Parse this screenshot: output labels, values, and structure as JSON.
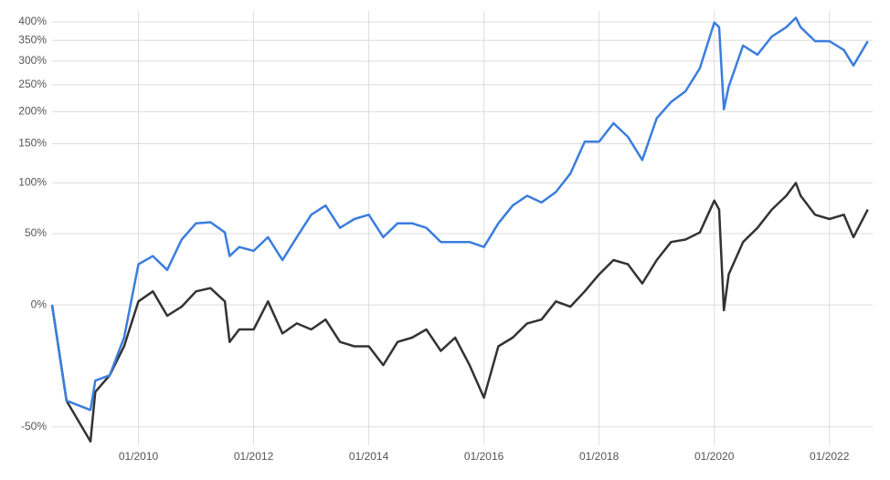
{
  "chart_data": {
    "type": "line",
    "x": [
      "07/2008",
      "10/2008",
      "03/2009",
      "04/2009",
      "07/2009",
      "10/2009",
      "01/2010",
      "04/2010",
      "07/2010",
      "10/2010",
      "01/2011",
      "04/2011",
      "07/2011",
      "08/2011",
      "10/2011",
      "01/2012",
      "04/2012",
      "07/2012",
      "10/2012",
      "01/2013",
      "04/2013",
      "07/2013",
      "10/2013",
      "01/2014",
      "04/2014",
      "07/2014",
      "10/2014",
      "01/2015",
      "04/2015",
      "07/2015",
      "10/2015",
      "01/2016",
      "04/2016",
      "07/2016",
      "10/2016",
      "01/2017",
      "04/2017",
      "07/2017",
      "10/2017",
      "01/2018",
      "04/2018",
      "07/2018",
      "10/2018",
      "01/2019",
      "04/2019",
      "07/2019",
      "10/2019",
      "01/2020",
      "02/2020",
      "03/2020",
      "04/2020",
      "07/2020",
      "10/2020",
      "01/2021",
      "04/2021",
      "06/2021",
      "07/2021",
      "10/2021",
      "01/2022",
      "04/2022",
      "06/2022",
      "09/2022"
    ],
    "series": [
      {
        "color": "#3b7ddd",
        "values": [
          0,
          -42,
          -45,
          -35,
          -33,
          -17,
          26,
          32,
          22,
          45,
          59,
          60,
          51,
          32,
          39,
          36,
          47,
          29,
          47,
          67,
          76,
          55,
          63,
          67,
          47,
          59,
          59,
          55,
          43,
          43,
          43,
          39,
          59,
          76,
          86,
          79,
          90,
          111,
          153,
          153,
          181,
          160,
          128,
          189,
          217,
          237,
          284,
          398,
          385,
          204,
          246,
          337,
          315,
          360,
          385,
          412,
          385,
          348,
          348,
          326,
          290,
          348
        ]
      },
      {
        "color": "#333333",
        "values": [
          0,
          -42,
          -54,
          -39,
          -33,
          -21,
          2,
          8,
          -6,
          -1,
          8,
          10,
          2,
          -19,
          -13,
          -13,
          2,
          -15,
          -10,
          -13,
          -8,
          -19,
          -21,
          -21,
          -29,
          -19,
          -17,
          -13,
          -23,
          -17,
          -29,
          -41,
          -21,
          -17,
          -10,
          -8,
          2,
          -1,
          8,
          19,
          29,
          26,
          13,
          29,
          43,
          45,
          51,
          81,
          72,
          -3,
          19,
          43,
          55,
          72,
          86,
          100,
          86,
          67,
          63,
          67,
          47,
          72
        ]
      }
    ],
    "xlim": [
      "07/2008",
      "10/2022"
    ],
    "xticks": [
      "01/2010",
      "01/2012",
      "01/2014",
      "01/2016",
      "01/2018",
      "01/2020",
      "01/2022"
    ],
    "ylim": [
      -55,
      432
    ],
    "yticks": [
      {
        "value": -50,
        "label": "-50%"
      },
      {
        "value": 0,
        "label": "0%"
      },
      {
        "value": 50,
        "label": "50%"
      },
      {
        "value": 100,
        "label": "100%"
      },
      {
        "value": 150,
        "label": "150%"
      },
      {
        "value": 200,
        "label": "200%"
      },
      {
        "value": 250,
        "label": "250%"
      },
      {
        "value": 300,
        "label": "300%"
      },
      {
        "value": 350,
        "label": "350%"
      },
      {
        "value": 400,
        "label": "400%"
      }
    ],
    "log_scale": true,
    "grid": true
  }
}
